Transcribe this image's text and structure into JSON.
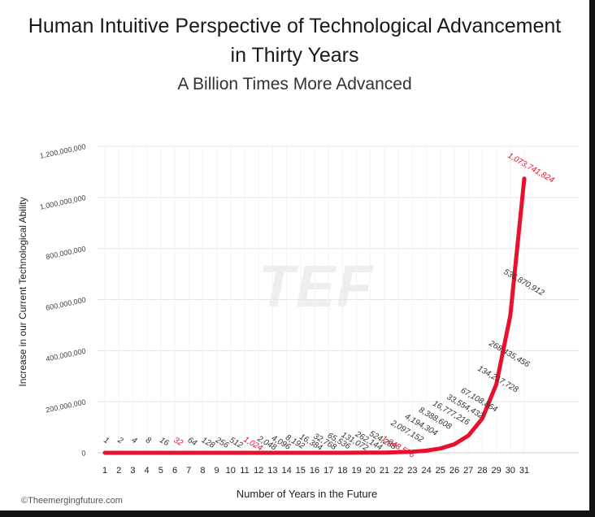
{
  "chart_data": {
    "type": "line",
    "title_line1": "Human Intuitive Perspective of Technological Advancement",
    "title_line2": "in Thirty Years",
    "subtitle": "A Billion Times More Advanced",
    "xlabel": "Number of Years in the Future",
    "ylabel": "Increase in our Current Technological Ability",
    "x": [
      1,
      2,
      3,
      4,
      5,
      6,
      7,
      8,
      9,
      10,
      11,
      12,
      13,
      14,
      15,
      16,
      17,
      18,
      19,
      20,
      21,
      22,
      23,
      24,
      25,
      26,
      27,
      28,
      29,
      30,
      31
    ],
    "values": [
      1,
      2,
      4,
      8,
      16,
      32,
      64,
      128,
      256,
      512,
      1024,
      2048,
      4096,
      8192,
      16384,
      32768,
      65536,
      131072,
      262144,
      524288,
      1048576,
      2097152,
      4194304,
      8388608,
      16777216,
      33554432,
      67108864,
      134217728,
      268435456,
      536870912,
      1073741824
    ],
    "point_labels": [
      "1",
      "2",
      "4",
      "8",
      "16",
      "32",
      "64",
      "128",
      "256",
      "512",
      "1,024",
      "2,048",
      "4,096",
      "8,192",
      "16,384",
      "32,768",
      "65,536",
      "131,072",
      "262,144",
      "524,288",
      "1,048,576",
      "2,097,152",
      "4,194,304",
      "8,388,608",
      "16,777,216",
      "33,554,432",
      "67,108,864",
      "134,217,728",
      "268,435,456",
      "536,870,912",
      "1,073,741,824"
    ],
    "highlighted_indices": [
      5,
      10,
      20,
      30
    ],
    "ylim": [
      0,
      1200000000
    ],
    "yticks": [
      0,
      200000000,
      400000000,
      600000000,
      800000000,
      1000000000,
      1200000000
    ],
    "ytick_labels": [
      "0",
      "200,000,000",
      "400,000,000",
      "600,000,000",
      "800,000,000",
      "1,000,000,000",
      "1,200,000,000"
    ],
    "grid": true,
    "colors": {
      "line": "#e8112d",
      "highlight": "#e8112d",
      "text": "#333333",
      "grid": "#e6e6e6"
    }
  },
  "watermark": "TEF",
  "credit": "©Theemergingfuture.com"
}
